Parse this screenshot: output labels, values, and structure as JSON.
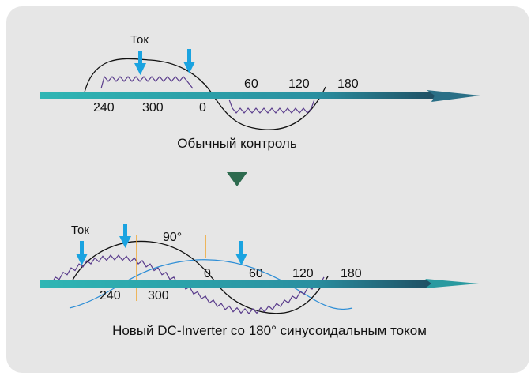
{
  "colors": {
    "background": "#e6e6e6",
    "axis_teal": "#2fb6b4",
    "axis_dark": "#1f4f63",
    "current_arrow": "#1aa3e0",
    "waveform": "#5a3c8c",
    "sine_blue": "#2e8ed6",
    "marker_orange": "#f0a020",
    "transition_triangle": "#2e6b4f"
  },
  "top_diagram": {
    "current_label": "Ток",
    "angle_labels": [
      "240",
      "300",
      "0",
      "60",
      "120",
      "180"
    ],
    "caption": "Обычный контроль",
    "arrow_icon": "down-arrow-icon"
  },
  "transition_icon": "down-triangle-icon",
  "bottom_diagram": {
    "current_label": "Ток",
    "phase_label": "90°",
    "angle_labels": [
      "240",
      "300",
      "0",
      "60",
      "120",
      "180"
    ],
    "caption": "Новый DC-Inverter со 180° синусоидальным током",
    "arrow_icon": "down-arrow-icon"
  }
}
